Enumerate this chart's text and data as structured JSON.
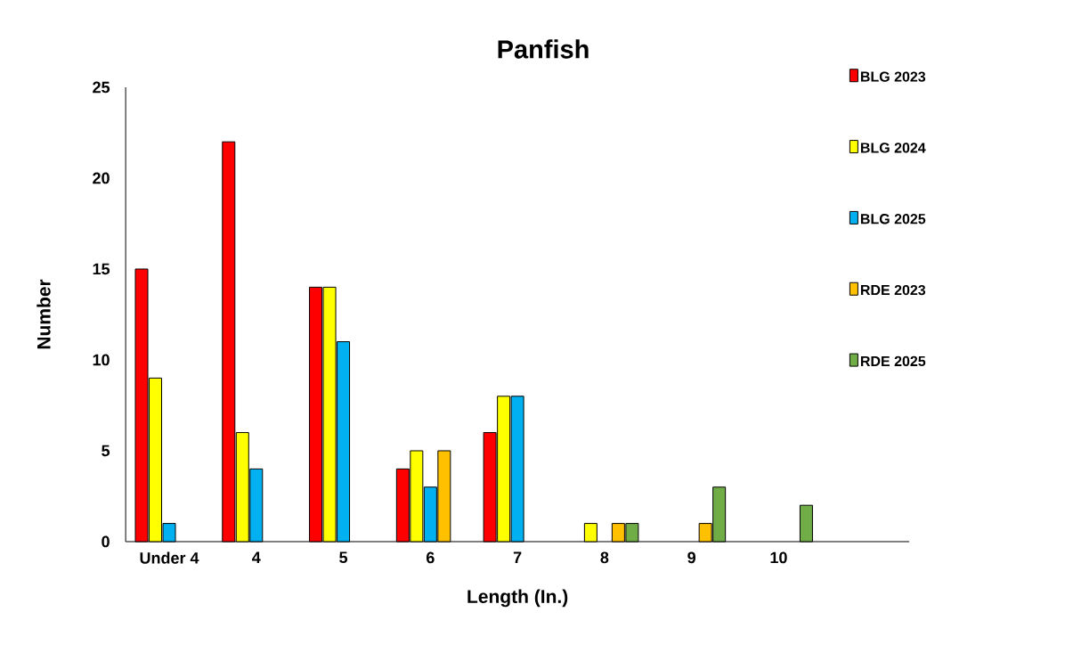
{
  "chart_data": {
    "type": "bar",
    "title": "Panfish",
    "xlabel": "Length (In.)",
    "ylabel": "Number",
    "categories": [
      "Under 4",
      "4",
      "5",
      "6",
      "7",
      "8",
      "9",
      "10",
      null
    ],
    "series": [
      {
        "name": "BLG 2023",
        "color": "#ff0000",
        "values": [
          15,
          22,
          14,
          4,
          6,
          null,
          null,
          null,
          null
        ]
      },
      {
        "name": "BLG 2024",
        "color": "#ffff00",
        "values": [
          9,
          6,
          14,
          5,
          8,
          1,
          null,
          null,
          null
        ]
      },
      {
        "name": "BLG 2025",
        "color": "#00b0f0",
        "values": [
          1,
          4,
          11,
          3,
          8,
          null,
          null,
          null,
          null
        ]
      },
      {
        "name": "RDE 2023",
        "color": "#ffc000",
        "values": [
          null,
          null,
          null,
          5,
          null,
          1,
          1,
          null,
          null
        ]
      },
      {
        "name": "RDE 2025",
        "color": "#70ad47",
        "values": [
          null,
          null,
          null,
          null,
          null,
          1,
          3,
          2,
          null
        ]
      }
    ],
    "ylim": [
      0,
      25
    ],
    "yticks": [
      0,
      5,
      10,
      15,
      20,
      25
    ],
    "legend": "right"
  }
}
